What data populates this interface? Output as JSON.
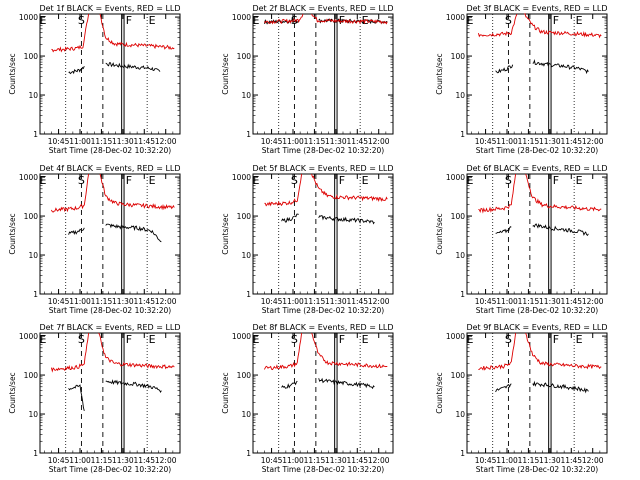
{
  "figure": {
    "colors": {
      "events": "#000000",
      "lld": "#dd0000",
      "axes": "#000000",
      "background": "#ffffff"
    },
    "markers": {
      "s_label": "S",
      "e_label": "E",
      "f_label": "F",
      "e_label_2": "E"
    }
  },
  "chart_data": [
    {
      "type": "line",
      "title": "Det 1f BLACK = Events, RED = LLD",
      "xlabel": "Start Time (28-Dec-02 10:32:20)",
      "ylabel": "Counts/sec",
      "xticks": [
        "10:45",
        "11:00",
        "11:15",
        "11:30",
        "11:45",
        "12:00"
      ],
      "yticks": [
        "1",
        "10",
        "100",
        "1000"
      ],
      "ylim": [
        1,
        1200
      ],
      "yscale": "log",
      "series": [
        {
          "name": "Events",
          "color": "#000000",
          "segments": [
            {
              "x": [
                "10:52",
                "10:55",
                "10:58",
                "11:01",
                "11:03"
              ],
              "y": [
                38,
                40,
                42,
                46,
                55
              ]
            },
            {
              "x": [
                "11:18",
                "11:22",
                "11:30",
                "11:40",
                "11:50",
                "11:56"
              ],
              "y": [
                65,
                60,
                55,
                52,
                48,
                40
              ]
            }
          ]
        },
        {
          "name": "LLD",
          "color": "#dd0000",
          "segments": [
            {
              "x": [
                "10:40",
                "10:50",
                "10:58",
                "11:02",
                "11:06"
              ],
              "y": [
                145,
                150,
                160,
                180,
                1200
              ]
            },
            {
              "x": [
                "11:14",
                "11:18",
                "11:24",
                "11:30",
                "11:40",
                "11:50",
                "12:00",
                "12:06"
              ],
              "y": [
                1200,
                300,
                210,
                200,
                190,
                180,
                170,
                160
              ]
            }
          ]
        }
      ]
    },
    {
      "type": "line",
      "title": "Det 2f BLACK = Events, RED = LLD",
      "xlabel": "Start Time (28-Dec-02 10:32:20)",
      "ylabel": "Counts/sec",
      "xticks": [
        "10:45",
        "11:00",
        "11:15",
        "11:30",
        "11:45",
        "12:00"
      ],
      "yticks": [
        "1",
        "10",
        "100",
        "1000"
      ],
      "ylim": [
        1,
        1200
      ],
      "yscale": "log",
      "series": [
        {
          "name": "Events",
          "color": "#000000",
          "segments": [
            {
              "x": [
                "10:40",
                "10:50",
                "11:00",
                "11:04"
              ],
              "y": [
                750,
                770,
                790,
                820
              ]
            },
            {
              "x": [
                "11:18",
                "11:30",
                "11:40",
                "11:50",
                "12:00",
                "12:06"
              ],
              "y": [
                820,
                800,
                790,
                780,
                770,
                760
              ]
            }
          ]
        },
        {
          "name": "LLD",
          "color": "#dd0000",
          "segments": [
            {
              "x": [
                "10:40",
                "10:50",
                "11:00",
                "11:04",
                "11:07"
              ],
              "y": [
                760,
                780,
                800,
                850,
                1200
              ]
            },
            {
              "x": [
                "11:13",
                "11:17",
                "11:30",
                "11:40",
                "11:50",
                "12:00",
                "12:06"
              ],
              "y": [
                1200,
                830,
                800,
                790,
                780,
                770,
                760
              ]
            }
          ]
        }
      ]
    },
    {
      "type": "line",
      "title": "Det 3f BLACK = Events, RED = LLD",
      "xlabel": "Start Time (28-Dec-02 10:32:20)",
      "ylabel": "Counts/sec",
      "xticks": [
        "10:45",
        "11:00",
        "11:15",
        "11:30",
        "11:45",
        "12:00"
      ],
      "yticks": [
        "1",
        "10",
        "100",
        "1000"
      ],
      "ylim": [
        1,
        1200
      ],
      "yscale": "log",
      "series": [
        {
          "name": "Events",
          "color": "#000000",
          "segments": [
            {
              "x": [
                "10:52",
                "10:56",
                "11:00",
                "11:04"
              ],
              "y": [
                38,
                42,
                48,
                60
              ]
            },
            {
              "x": [
                "11:18",
                "11:24",
                "11:30",
                "11:40",
                "11:50",
                "11:57"
              ],
              "y": [
                70,
                65,
                60,
                55,
                48,
                40
              ]
            }
          ]
        },
        {
          "name": "LLD",
          "color": "#dd0000",
          "segments": [
            {
              "x": [
                "10:40",
                "10:50",
                "10:58",
                "11:03",
                "11:07"
              ],
              "y": [
                350,
                360,
                370,
                400,
                1200
              ]
            },
            {
              "x": [
                "11:12",
                "11:18",
                "11:24",
                "11:30",
                "11:40",
                "11:50",
                "12:00",
                "12:06"
              ],
              "y": [
                1200,
                600,
                420,
                400,
                390,
                370,
                350,
                330
              ]
            }
          ]
        }
      ]
    },
    {
      "type": "line",
      "title": "Det 4f BLACK = Events, RED = LLD",
      "xlabel": "Start Time (28-Dec-02 10:32:20)",
      "ylabel": "Counts/sec",
      "xticks": [
        "10:45",
        "11:00",
        "11:15",
        "11:30",
        "11:45",
        "12:00"
      ],
      "yticks": [
        "1",
        "10",
        "100",
        "1000"
      ],
      "ylim": [
        1,
        1200
      ],
      "yscale": "log",
      "series": [
        {
          "name": "Events",
          "color": "#000000",
          "segments": [
            {
              "x": [
                "10:52",
                "10:56",
                "11:00",
                "11:03"
              ],
              "y": [
                35,
                38,
                42,
                50
              ]
            },
            {
              "x": [
                "11:18",
                "11:24",
                "11:30",
                "11:40",
                "11:50",
                "11:57"
              ],
              "y": [
                60,
                55,
                52,
                50,
                42,
                22
              ]
            }
          ]
        },
        {
          "name": "LLD",
          "color": "#dd0000",
          "segments": [
            {
              "x": [
                "10:40",
                "10:50",
                "10:58",
                "11:03",
                "11:06"
              ],
              "y": [
                140,
                150,
                160,
                190,
                1200
              ]
            },
            {
              "x": [
                "11:14",
                "11:18",
                "11:24",
                "11:30",
                "11:40",
                "11:50",
                "12:00",
                "12:06"
              ],
              "y": [
                1200,
                320,
                220,
                200,
                190,
                180,
                170,
                165
              ]
            }
          ]
        }
      ]
    },
    {
      "type": "line",
      "title": "Det 5f BLACK = Events, RED = LLD",
      "xlabel": "Start Time (28-Dec-02 10:32:20)",
      "ylabel": "Counts/sec",
      "xticks": [
        "10:45",
        "11:00",
        "11:15",
        "11:30",
        "11:45",
        "12:00"
      ],
      "yticks": [
        "1",
        "10",
        "100",
        "1000"
      ],
      "ylim": [
        1,
        1200
      ],
      "yscale": "log",
      "series": [
        {
          "name": "Events",
          "color": "#000000",
          "segments": [
            {
              "x": [
                "10:52",
                "10:56",
                "11:00",
                "11:04"
              ],
              "y": [
                75,
                80,
                90,
                110
              ]
            },
            {
              "x": [
                "11:18",
                "11:24",
                "11:30",
                "11:40",
                "11:50",
                "11:57"
              ],
              "y": [
                95,
                90,
                85,
                80,
                75,
                70
              ]
            }
          ]
        },
        {
          "name": "LLD",
          "color": "#dd0000",
          "segments": [
            {
              "x": [
                "10:40",
                "10:50",
                "10:58",
                "11:03",
                "11:06"
              ],
              "y": [
                200,
                210,
                220,
                260,
                1200
              ]
            },
            {
              "x": [
                "11:13",
                "11:18",
                "11:24",
                "11:30",
                "11:40",
                "11:50",
                "12:00",
                "12:06"
              ],
              "y": [
                1200,
                500,
                330,
                310,
                300,
                290,
                280,
                270
              ]
            }
          ]
        }
      ]
    },
    {
      "type": "line",
      "title": "Det 6f BLACK = Events, RED = LLD",
      "xlabel": "Start Time (28-Dec-02 10:32:20)",
      "ylabel": "Counts/sec",
      "xticks": [
        "10:45",
        "11:00",
        "11:15",
        "11:30",
        "11:45",
        "12:00"
      ],
      "yticks": [
        "1",
        "10",
        "100",
        "1000"
      ],
      "ylim": [
        1,
        1200
      ],
      "yscale": "log",
      "series": [
        {
          "name": "Events",
          "color": "#000000",
          "segments": [
            {
              "x": [
                "10:52",
                "10:56",
                "11:00",
                "11:03"
              ],
              "y": [
                35,
                38,
                42,
                52
              ]
            },
            {
              "x": [
                "11:18",
                "11:24",
                "11:30",
                "11:40",
                "11:50",
                "11:57"
              ],
              "y": [
                60,
                55,
                50,
                45,
                40,
                35
              ]
            }
          ]
        },
        {
          "name": "LLD",
          "color": "#dd0000",
          "segments": [
            {
              "x": [
                "10:40",
                "10:50",
                "10:58",
                "11:03",
                "11:06"
              ],
              "y": [
                140,
                150,
                160,
                190,
                1200
              ]
            },
            {
              "x": [
                "11:13",
                "11:18",
                "11:24",
                "11:30",
                "11:40",
                "11:50",
                "12:00",
                "12:06"
              ],
              "y": [
                1200,
                300,
                200,
                180,
                170,
                160,
                150,
                150
              ]
            }
          ]
        }
      ]
    },
    {
      "type": "line",
      "title": "Det 7f BLACK = Events, RED = LLD",
      "xlabel": "Start Time (28-Dec-02 10:32:20)",
      "ylabel": "Counts/sec",
      "xticks": [
        "10:45",
        "11:00",
        "11:15",
        "11:30",
        "11:45",
        "12:00"
      ],
      "yticks": [
        "1",
        "10",
        "100",
        "1000"
      ],
      "ylim": [
        1,
        1200
      ],
      "yscale": "log",
      "series": [
        {
          "name": "Events",
          "color": "#000000",
          "segments": [
            {
              "x": [
                "10:52",
                "10:56",
                "11:00",
                "11:03"
              ],
              "y": [
                45,
                48,
                52,
                12
              ]
            },
            {
              "x": [
                "11:18",
                "11:24",
                "11:30",
                "11:40",
                "11:50",
                "11:57"
              ],
              "y": [
                70,
                65,
                62,
                58,
                50,
                40
              ]
            }
          ]
        },
        {
          "name": "LLD",
          "color": "#dd0000",
          "segments": [
            {
              "x": [
                "10:40",
                "10:50",
                "10:58",
                "11:03",
                "11:06"
              ],
              "y": [
                140,
                150,
                160,
                190,
                1200
              ]
            },
            {
              "x": [
                "11:13",
                "11:18",
                "11:24",
                "11:30",
                "11:40",
                "11:50",
                "12:00",
                "12:06"
              ],
              "y": [
                1200,
                280,
                200,
                190,
                180,
                170,
                165,
                160
              ]
            }
          ]
        }
      ]
    },
    {
      "type": "line",
      "title": "Det 8f BLACK = Events, RED = LLD",
      "xlabel": "Start Time (28-Dec-02 10:32:20)",
      "ylabel": "Counts/sec",
      "xticks": [
        "10:45",
        "11:00",
        "11:15",
        "11:30",
        "11:45",
        "12:00"
      ],
      "yticks": [
        "1",
        "10",
        "100",
        "1000"
      ],
      "ylim": [
        1,
        1200
      ],
      "yscale": "log",
      "series": [
        {
          "name": "Events",
          "color": "#000000",
          "segments": [
            {
              "x": [
                "10:52",
                "10:56",
                "11:00",
                "11:03"
              ],
              "y": [
                48,
                52,
                58,
                70
              ]
            },
            {
              "x": [
                "11:18",
                "11:24",
                "11:30",
                "11:40",
                "11:50",
                "11:57"
              ],
              "y": [
                75,
                70,
                65,
                60,
                55,
                50
              ]
            }
          ]
        },
        {
          "name": "LLD",
          "color": "#dd0000",
          "segments": [
            {
              "x": [
                "10:40",
                "10:50",
                "10:58",
                "11:03",
                "11:06"
              ],
              "y": [
                150,
                160,
                170,
                200,
                1200
              ]
            },
            {
              "x": [
                "11:13",
                "11:18",
                "11:24",
                "11:30",
                "11:40",
                "11:50",
                "12:00",
                "12:06"
              ],
              "y": [
                1200,
                330,
                210,
                200,
                190,
                180,
                170,
                165
              ]
            }
          ]
        }
      ]
    },
    {
      "type": "line",
      "title": "Det 9f BLACK = Events, RED = LLD",
      "xlabel": "Start Time (28-Dec-02 10:32:20)",
      "ylabel": "Counts/sec",
      "xticks": [
        "10:45",
        "11:00",
        "11:15",
        "11:30",
        "11:45",
        "12:00"
      ],
      "yticks": [
        "1",
        "10",
        "100",
        "1000"
      ],
      "ylim": [
        1,
        1200
      ],
      "yscale": "log",
      "series": [
        {
          "name": "Events",
          "color": "#000000",
          "segments": [
            {
              "x": [
                "10:52",
                "10:56",
                "11:00",
                "11:03"
              ],
              "y": [
                40,
                44,
                50,
                60
              ]
            },
            {
              "x": [
                "11:18",
                "11:24",
                "11:30",
                "11:40",
                "11:50",
                "11:57"
              ],
              "y": [
                60,
                58,
                55,
                50,
                45,
                38
              ]
            }
          ]
        },
        {
          "name": "LLD",
          "color": "#dd0000",
          "segments": [
            {
              "x": [
                "10:40",
                "10:50",
                "10:58",
                "11:03",
                "11:06"
              ],
              "y": [
                150,
                160,
                170,
                200,
                1200
              ]
            },
            {
              "x": [
                "11:13",
                "11:18",
                "11:24",
                "11:30",
                "11:40",
                "11:50",
                "12:00",
                "12:06"
              ],
              "y": [
                1200,
                330,
                200,
                190,
                180,
                170,
                165,
                160
              ]
            }
          ]
        }
      ]
    }
  ]
}
